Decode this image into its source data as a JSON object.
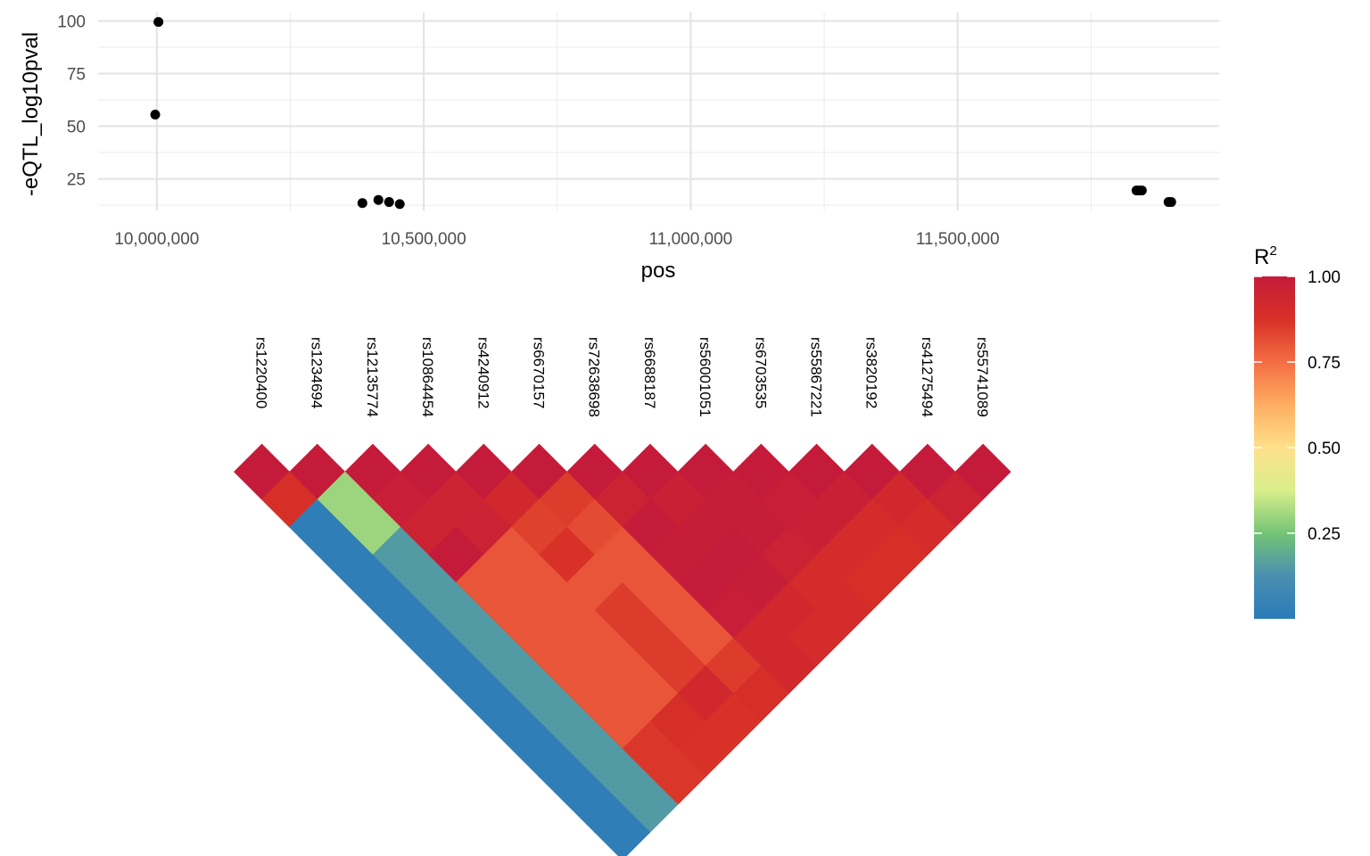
{
  "chart_data": [
    {
      "type": "scatter",
      "title": "",
      "xlabel": "pos",
      "ylabel": "-eQTL_log10pval",
      "xlim": [
        9890000,
        11990000
      ],
      "ylim": [
        10,
        104
      ],
      "x_ticks": [
        10000000,
        10500000,
        11000000,
        11500000
      ],
      "x_tick_labels": [
        "10,000,000",
        "10,500,000",
        "11,000,000",
        "11,500,000"
      ],
      "y_ticks": [
        25,
        50,
        75,
        100
      ],
      "y_tick_labels": [
        "25",
        "50",
        "75",
        "100"
      ],
      "grid": true,
      "point_color": "#000000",
      "points": [
        {
          "x": 10003000,
          "y": 99.5
        },
        {
          "x": 9997000,
          "y": 55.5
        },
        {
          "x": 10385000,
          "y": 13.5
        },
        {
          "x": 10415000,
          "y": 15
        },
        {
          "x": 10435000,
          "y": 14
        },
        {
          "x": 10455000,
          "y": 13
        },
        {
          "x": 11835000,
          "y": 19.5
        },
        {
          "x": 11840000,
          "y": 19.5
        },
        {
          "x": 11845000,
          "y": 19.5
        },
        {
          "x": 11895000,
          "y": 14
        },
        {
          "x": 11900000,
          "y": 14
        }
      ]
    },
    {
      "type": "heatmap",
      "subtype": "ld-triangle",
      "snps": [
        "rs1220400",
        "rs1234694",
        "rs12135774",
        "rs10864454",
        "rs4240912",
        "rs6670157",
        "rs72638698",
        "rs6688187",
        "rs56001051",
        "rs6703535",
        "rs55867221",
        "rs3820192",
        "rs41275494",
        "rs55741089"
      ],
      "r2_by_distance": [
        [
          1,
          1,
          1,
          1,
          1,
          1,
          1,
          1,
          1,
          1,
          1,
          1,
          1,
          1
        ],
        [
          0.88,
          0.3,
          0.98,
          0.95,
          0.92,
          0.85,
          0.95,
          0.97,
          0.99,
          0.98,
          0.97,
          0.92,
          0.95
        ],
        [
          0.02,
          0.3,
          0.95,
          0.96,
          0.84,
          0.82,
          1.0,
          0.99,
          0.99,
          0.97,
          0.9,
          0.9
        ],
        [
          0.02,
          0.15,
          1.0,
          0.8,
          0.87,
          0.8,
          0.99,
          1.0,
          0.96,
          0.9,
          0.88
        ],
        [
          0.02,
          0.15,
          0.8,
          0.8,
          0.8,
          0.8,
          1.0,
          0.99,
          0.9,
          0.88
        ],
        [
          0.02,
          0.15,
          0.8,
          0.8,
          0.85,
          0.8,
          0.98,
          0.92,
          0.9
        ],
        [
          0.02,
          0.15,
          0.8,
          0.8,
          0.85,
          0.8,
          0.92,
          0.9
        ],
        [
          0.02,
          0.15,
          0.8,
          0.8,
          0.85,
          0.85,
          0.92
        ],
        [
          0.02,
          0.15,
          0.8,
          0.8,
          0.92,
          0.88
        ],
        [
          0.02,
          0.15,
          0.8,
          0.88,
          0.87
        ],
        [
          0.02,
          0.15,
          0.86,
          0.87
        ],
        [
          0.02,
          0.15,
          0.86
        ],
        [
          0.02,
          0.15
        ],
        [
          0.02
        ]
      ],
      "legend": {
        "title": "R",
        "title_superscript": "2",
        "position": "right",
        "ticks": [
          0.25,
          0.5,
          0.75,
          1.0
        ],
        "tick_labels": [
          "0.25",
          "0.50",
          "0.75",
          "1.00"
        ],
        "range": [
          0.0,
          1.0
        ],
        "colors": [
          "#2b7bba",
          "#4a8fb0",
          "#74c476",
          "#d9ef8b",
          "#fee08b",
          "#fdae61",
          "#f46d43",
          "#d73027",
          "#c51b3a"
        ]
      }
    }
  ]
}
